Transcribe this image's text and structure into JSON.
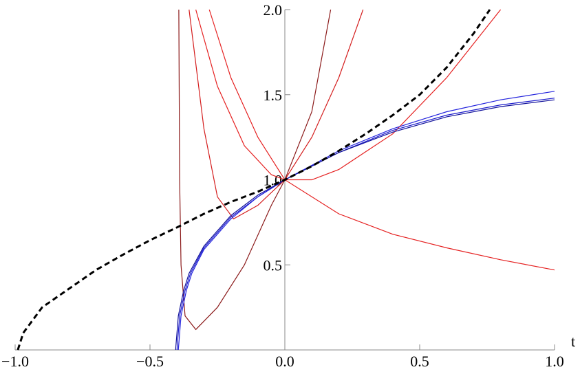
{
  "chart_data": {
    "type": "line",
    "x_label": "t",
    "xlim": [
      -1,
      1
    ],
    "ylim": [
      0,
      2
    ],
    "xticks": [
      {
        "value": -1,
        "label": "−1.0"
      },
      {
        "value": -0.5,
        "label": "−0.5"
      },
      {
        "value": 0,
        "label": "0.0"
      },
      {
        "value": 0.5,
        "label": "0.5"
      },
      {
        "value": 1,
        "label": "1.0"
      }
    ],
    "yticks": [
      {
        "value": 0.5,
        "label": "0.5"
      },
      {
        "value": 1,
        "label": "1.0"
      },
      {
        "value": 1.5,
        "label": "1.5"
      },
      {
        "value": 2,
        "label": "2.0"
      }
    ],
    "series": [
      {
        "color": "#e52020",
        "x": [
          -0.28,
          -0.2,
          -0.1,
          0,
          0.2,
          0.4,
          0.6,
          0.8,
          1
        ],
        "values": [
          2.0,
          1.6,
          1.25,
          1.0,
          0.8,
          0.68,
          0.6,
          0.53,
          0.47
        ]
      },
      {
        "color": "#d41c1c",
        "x": [
          -0.355,
          -0.3,
          -0.25,
          -0.19,
          -0.1,
          0,
          0.1,
          0.2,
          0.29
        ],
        "values": [
          2.0,
          1.3,
          0.9,
          0.77,
          0.85,
          1.0,
          1.25,
          1.6,
          2.0
        ]
      },
      {
        "color": "#e52020",
        "x": [
          -0.33,
          -0.25,
          -0.15,
          -0.05,
          0,
          0.1,
          0.2,
          0.4,
          0.6,
          0.8
        ],
        "values": [
          2.0,
          1.55,
          1.2,
          1.03,
          1.0,
          1.0,
          1.06,
          1.27,
          1.6,
          2.0
        ]
      },
      {
        "color": "#8b1a1a",
        "x": [
          -0.393,
          -0.39,
          -0.385,
          -0.37,
          -0.33,
          -0.25,
          -0.15,
          -0.05,
          0,
          0.1,
          0.17
        ],
        "values": [
          2.0,
          1.0,
          0.5,
          0.2,
          0.12,
          0.25,
          0.5,
          0.85,
          1.0,
          1.4,
          2.0
        ]
      },
      {
        "color": "#1a1acc",
        "x": [
          -0.4,
          -0.39,
          -0.37,
          -0.35,
          -0.3,
          -0.2,
          -0.1,
          0,
          0.2,
          0.4,
          0.6,
          0.8,
          1
        ],
        "values": [
          0,
          0.2,
          0.35,
          0.45,
          0.6,
          0.78,
          0.9,
          1.0,
          1.16,
          1.29,
          1.38,
          1.44,
          1.48
        ]
      },
      {
        "color": "#2222dd",
        "x": [
          -0.395,
          -0.385,
          -0.365,
          -0.345,
          -0.3,
          -0.2,
          -0.1,
          0,
          0.2,
          0.4,
          0.6,
          0.8,
          1
        ],
        "values": [
          0,
          0.2,
          0.35,
          0.45,
          0.59,
          0.77,
          0.9,
          1.0,
          1.17,
          1.3,
          1.4,
          1.47,
          1.52
        ]
      },
      {
        "color": "#10109a",
        "x": [
          -0.405,
          -0.395,
          -0.375,
          -0.355,
          -0.3,
          -0.2,
          -0.1,
          0,
          0.2,
          0.4,
          0.6,
          0.8,
          1
        ],
        "values": [
          0,
          0.2,
          0.35,
          0.45,
          0.61,
          0.79,
          0.91,
          1.0,
          1.16,
          1.28,
          1.37,
          1.43,
          1.47
        ]
      },
      {
        "color": "#000000",
        "dashed": true,
        "x": [
          -0.99,
          -0.97,
          -0.9,
          -0.8,
          -0.7,
          -0.6,
          -0.5,
          -0.4,
          -0.3,
          -0.2,
          -0.1,
          0,
          0.1,
          0.2,
          0.3,
          0.4,
          0.5,
          0.6,
          0.7,
          0.76
        ],
        "values": [
          0,
          0.1,
          0.25,
          0.36,
          0.47,
          0.56,
          0.645,
          0.72,
          0.8,
          0.87,
          0.93,
          1.0,
          1.08,
          1.17,
          1.27,
          1.38,
          1.5,
          1.66,
          1.86,
          2.0
        ]
      }
    ]
  }
}
